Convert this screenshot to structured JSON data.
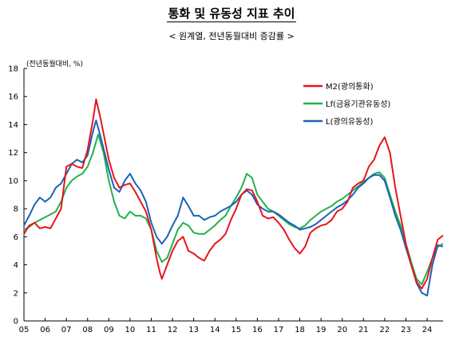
{
  "chart_data": {
    "type": "line",
    "title": "통화 및 유동성 지표 추이",
    "subtitle": "< 원계열, 전년동월대비 증감률 >",
    "ylabel": "(전년동월대비, %)",
    "ylim": [
      0,
      18
    ],
    "yticks": [
      "0",
      "2",
      "4",
      "6",
      "8",
      "10",
      "12",
      "14",
      "16",
      "18"
    ],
    "xlim": [
      2005.0,
      2024.75
    ],
    "xticks": [
      "05",
      "06",
      "07",
      "08",
      "09",
      "10",
      "11",
      "12",
      "13",
      "14",
      "15",
      "16",
      "17",
      "18",
      "19",
      "20",
      "21",
      "22",
      "23",
      "24"
    ],
    "grid": false,
    "legend_position": "top-right",
    "series": [
      {
        "name": "M2(광의통화)",
        "color": "#e8141c",
        "points": [
          [
            2005.0,
            6.2
          ],
          [
            2005.25,
            6.8
          ],
          [
            2005.5,
            7.0
          ],
          [
            2005.75,
            6.6
          ],
          [
            2006.0,
            6.7
          ],
          [
            2006.25,
            6.6
          ],
          [
            2006.5,
            7.3
          ],
          [
            2006.75,
            8.0
          ],
          [
            2007.0,
            11.0
          ],
          [
            2007.25,
            11.2
          ],
          [
            2007.5,
            11.0
          ],
          [
            2007.75,
            10.9
          ],
          [
            2008.0,
            12.2
          ],
          [
            2008.25,
            14.3
          ],
          [
            2008.4,
            15.8
          ],
          [
            2008.6,
            14.5
          ],
          [
            2008.8,
            13.0
          ],
          [
            2009.0,
            11.5
          ],
          [
            2009.25,
            10.2
          ],
          [
            2009.5,
            9.5
          ],
          [
            2009.75,
            9.7
          ],
          [
            2010.0,
            9.8
          ],
          [
            2010.25,
            9.2
          ],
          [
            2010.5,
            8.5
          ],
          [
            2010.75,
            7.8
          ],
          [
            2011.0,
            6.5
          ],
          [
            2011.25,
            4.5
          ],
          [
            2011.4,
            3.5
          ],
          [
            2011.5,
            3.0
          ],
          [
            2011.75,
            4.0
          ],
          [
            2012.0,
            5.0
          ],
          [
            2012.25,
            5.7
          ],
          [
            2012.5,
            6.0
          ],
          [
            2012.75,
            5.0
          ],
          [
            2013.0,
            4.8
          ],
          [
            2013.25,
            4.5
          ],
          [
            2013.5,
            4.3
          ],
          [
            2013.75,
            5.0
          ],
          [
            2014.0,
            5.5
          ],
          [
            2014.25,
            5.8
          ],
          [
            2014.5,
            6.2
          ],
          [
            2014.75,
            7.2
          ],
          [
            2015.0,
            8.0
          ],
          [
            2015.25,
            9.0
          ],
          [
            2015.5,
            9.4
          ],
          [
            2015.75,
            9.3
          ],
          [
            2016.0,
            8.5
          ],
          [
            2016.25,
            7.5
          ],
          [
            2016.5,
            7.3
          ],
          [
            2016.75,
            7.4
          ],
          [
            2017.0,
            7.0
          ],
          [
            2017.25,
            6.5
          ],
          [
            2017.5,
            5.8
          ],
          [
            2017.75,
            5.2
          ],
          [
            2018.0,
            4.8
          ],
          [
            2018.25,
            5.3
          ],
          [
            2018.5,
            6.3
          ],
          [
            2018.75,
            6.6
          ],
          [
            2019.0,
            6.8
          ],
          [
            2019.25,
            6.9
          ],
          [
            2019.5,
            7.2
          ],
          [
            2019.75,
            7.8
          ],
          [
            2020.0,
            8.0
          ],
          [
            2020.25,
            8.5
          ],
          [
            2020.5,
            9.5
          ],
          [
            2020.75,
            9.8
          ],
          [
            2021.0,
            10.0
          ],
          [
            2021.25,
            11.0
          ],
          [
            2021.5,
            11.5
          ],
          [
            2021.75,
            12.5
          ],
          [
            2022.0,
            13.1
          ],
          [
            2022.25,
            12.0
          ],
          [
            2022.5,
            9.5
          ],
          [
            2022.75,
            7.5
          ],
          [
            2023.0,
            5.5
          ],
          [
            2023.25,
            4.0
          ],
          [
            2023.5,
            2.8
          ],
          [
            2023.75,
            2.3
          ],
          [
            2024.0,
            3.0
          ],
          [
            2024.25,
            4.5
          ],
          [
            2024.5,
            5.8
          ],
          [
            2024.75,
            6.1
          ]
        ]
      },
      {
        "name": "Lf(금융기관유동성)",
        "color": "#22b14c",
        "points": [
          [
            2005.0,
            6.5
          ],
          [
            2005.25,
            6.7
          ],
          [
            2005.5,
            7.0
          ],
          [
            2005.75,
            7.2
          ],
          [
            2006.0,
            7.4
          ],
          [
            2006.25,
            7.6
          ],
          [
            2006.5,
            7.8
          ],
          [
            2006.75,
            8.5
          ],
          [
            2007.0,
            9.5
          ],
          [
            2007.25,
            10.0
          ],
          [
            2007.5,
            10.3
          ],
          [
            2007.75,
            10.5
          ],
          [
            2008.0,
            11.0
          ],
          [
            2008.25,
            12.0
          ],
          [
            2008.5,
            13.3
          ],
          [
            2008.75,
            12.0
          ],
          [
            2009.0,
            10.0
          ],
          [
            2009.25,
            8.5
          ],
          [
            2009.5,
            7.5
          ],
          [
            2009.75,
            7.3
          ],
          [
            2010.0,
            7.8
          ],
          [
            2010.25,
            7.5
          ],
          [
            2010.5,
            7.5
          ],
          [
            2010.75,
            7.3
          ],
          [
            2011.0,
            6.5
          ],
          [
            2011.25,
            5.0
          ],
          [
            2011.5,
            4.2
          ],
          [
            2011.75,
            4.5
          ],
          [
            2012.0,
            5.5
          ],
          [
            2012.25,
            6.5
          ],
          [
            2012.5,
            7.0
          ],
          [
            2012.75,
            6.8
          ],
          [
            2013.0,
            6.3
          ],
          [
            2013.25,
            6.2
          ],
          [
            2013.5,
            6.2
          ],
          [
            2013.75,
            6.5
          ],
          [
            2014.0,
            6.8
          ],
          [
            2014.25,
            7.2
          ],
          [
            2014.5,
            7.5
          ],
          [
            2014.75,
            8.2
          ],
          [
            2015.0,
            8.8
          ],
          [
            2015.25,
            9.5
          ],
          [
            2015.5,
            10.5
          ],
          [
            2015.75,
            10.2
          ],
          [
            2016.0,
            9.0
          ],
          [
            2016.25,
            8.5
          ],
          [
            2016.5,
            8.0
          ],
          [
            2016.75,
            7.8
          ],
          [
            2017.0,
            7.5
          ],
          [
            2017.25,
            7.2
          ],
          [
            2017.5,
            6.9
          ],
          [
            2017.75,
            6.7
          ],
          [
            2018.0,
            6.6
          ],
          [
            2018.25,
            6.8
          ],
          [
            2018.5,
            7.2
          ],
          [
            2018.75,
            7.5
          ],
          [
            2019.0,
            7.8
          ],
          [
            2019.25,
            8.0
          ],
          [
            2019.5,
            8.2
          ],
          [
            2019.75,
            8.5
          ],
          [
            2020.0,
            8.7
          ],
          [
            2020.25,
            9.0
          ],
          [
            2020.5,
            9.3
          ],
          [
            2020.75,
            9.6
          ],
          [
            2021.0,
            9.9
          ],
          [
            2021.25,
            10.2
          ],
          [
            2021.5,
            10.5
          ],
          [
            2021.75,
            10.6
          ],
          [
            2022.0,
            10.2
          ],
          [
            2022.25,
            9.0
          ],
          [
            2022.5,
            7.8
          ],
          [
            2022.75,
            6.8
          ],
          [
            2023.0,
            5.5
          ],
          [
            2023.25,
            4.2
          ],
          [
            2023.5,
            3.0
          ],
          [
            2023.75,
            2.6
          ],
          [
            2024.0,
            3.5
          ],
          [
            2024.25,
            4.5
          ],
          [
            2024.5,
            5.3
          ],
          [
            2024.75,
            5.5
          ]
        ]
      },
      {
        "name": "L(광의유동성)",
        "color": "#1c62b8",
        "points": [
          [
            2005.0,
            6.8
          ],
          [
            2005.25,
            7.5
          ],
          [
            2005.5,
            8.3
          ],
          [
            2005.75,
            8.8
          ],
          [
            2006.0,
            8.5
          ],
          [
            2006.25,
            8.8
          ],
          [
            2006.5,
            9.5
          ],
          [
            2006.75,
            9.8
          ],
          [
            2007.0,
            10.5
          ],
          [
            2007.25,
            11.2
          ],
          [
            2007.5,
            11.5
          ],
          [
            2007.75,
            11.3
          ],
          [
            2008.0,
            11.8
          ],
          [
            2008.25,
            13.5
          ],
          [
            2008.4,
            14.3
          ],
          [
            2008.6,
            13.2
          ],
          [
            2008.8,
            12.0
          ],
          [
            2009.0,
            10.8
          ],
          [
            2009.25,
            9.5
          ],
          [
            2009.5,
            9.2
          ],
          [
            2009.75,
            10.0
          ],
          [
            2010.0,
            10.5
          ],
          [
            2010.25,
            9.8
          ],
          [
            2010.5,
            9.3
          ],
          [
            2010.75,
            8.5
          ],
          [
            2011.0,
            7.0
          ],
          [
            2011.25,
            6.0
          ],
          [
            2011.5,
            5.5
          ],
          [
            2011.75,
            6.0
          ],
          [
            2012.0,
            6.8
          ],
          [
            2012.25,
            7.5
          ],
          [
            2012.5,
            8.8
          ],
          [
            2012.75,
            8.2
          ],
          [
            2013.0,
            7.5
          ],
          [
            2013.25,
            7.5
          ],
          [
            2013.5,
            7.2
          ],
          [
            2013.75,
            7.4
          ],
          [
            2014.0,
            7.5
          ],
          [
            2014.25,
            7.8
          ],
          [
            2014.5,
            8.0
          ],
          [
            2014.75,
            8.2
          ],
          [
            2015.0,
            8.5
          ],
          [
            2015.25,
            9.0
          ],
          [
            2015.5,
            9.3
          ],
          [
            2015.75,
            9.0
          ],
          [
            2016.0,
            8.3
          ],
          [
            2016.25,
            8.0
          ],
          [
            2016.5,
            7.8
          ],
          [
            2016.75,
            7.8
          ],
          [
            2017.0,
            7.6
          ],
          [
            2017.25,
            7.3
          ],
          [
            2017.5,
            7.0
          ],
          [
            2017.75,
            6.8
          ],
          [
            2018.0,
            6.5
          ],
          [
            2018.25,
            6.6
          ],
          [
            2018.5,
            6.7
          ],
          [
            2018.75,
            6.9
          ],
          [
            2019.0,
            7.2
          ],
          [
            2019.25,
            7.5
          ],
          [
            2019.5,
            7.8
          ],
          [
            2019.75,
            8.1
          ],
          [
            2020.0,
            8.3
          ],
          [
            2020.25,
            8.6
          ],
          [
            2020.5,
            9.0
          ],
          [
            2020.75,
            9.5
          ],
          [
            2021.0,
            9.8
          ],
          [
            2021.25,
            10.2
          ],
          [
            2021.5,
            10.4
          ],
          [
            2021.75,
            10.4
          ],
          [
            2022.0,
            10.0
          ],
          [
            2022.25,
            8.8
          ],
          [
            2022.5,
            7.5
          ],
          [
            2022.75,
            6.5
          ],
          [
            2023.0,
            5.2
          ],
          [
            2023.25,
            4.0
          ],
          [
            2023.5,
            2.7
          ],
          [
            2023.75,
            2.0
          ],
          [
            2024.0,
            1.8
          ],
          [
            2024.25,
            4.0
          ],
          [
            2024.5,
            5.4
          ],
          [
            2024.75,
            5.3
          ]
        ]
      }
    ]
  }
}
